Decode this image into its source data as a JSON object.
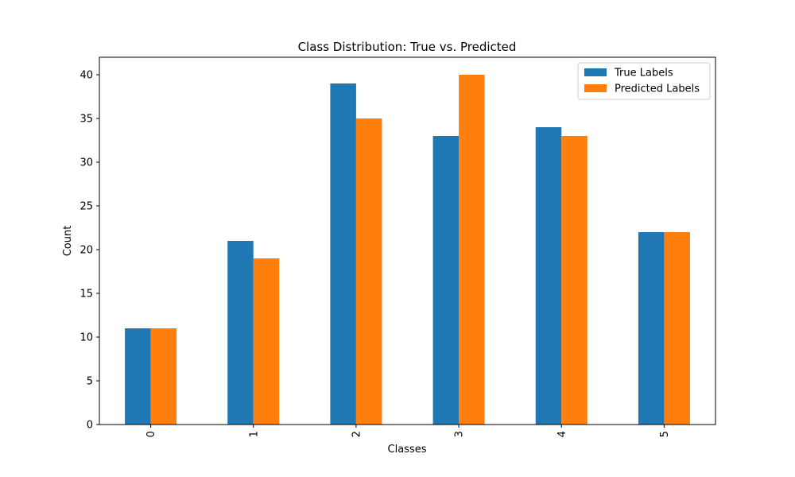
{
  "chart_data": {
    "type": "bar",
    "title": "Class Distribution: True vs. Predicted",
    "xlabel": "Classes",
    "ylabel": "Count",
    "categories": [
      "0",
      "1",
      "2",
      "3",
      "4",
      "5"
    ],
    "series": [
      {
        "name": "True Labels",
        "color": "#1f77b4",
        "values": [
          11,
          21,
          39,
          33,
          34,
          22
        ]
      },
      {
        "name": "Predicted Labels",
        "color": "#ff7f0e",
        "values": [
          11,
          19,
          35,
          40,
          33,
          22
        ]
      }
    ],
    "ylim": [
      0,
      42
    ],
    "yticks": [
      0,
      5,
      10,
      15,
      20,
      25,
      30,
      35,
      40
    ],
    "grid": false,
    "legend_position": "top-right",
    "xtick_rotation": "vertical"
  }
}
